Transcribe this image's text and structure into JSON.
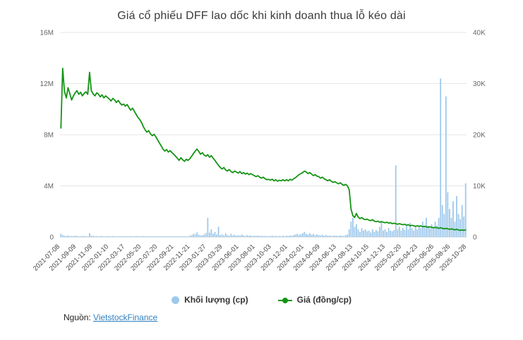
{
  "page": {
    "title": "Giá cổ phiếu DFF lao dốc khi kinh doanh thua lỗ kéo dài",
    "source_label": "Nguồn:",
    "source_link_text": "VietstockFinance"
  },
  "legend": {
    "volume_label": "Khối lượng (cp)",
    "price_label": "Giá (đồng/cp)"
  },
  "colors": {
    "volume_bar": "#9ec9ec",
    "price_line": "#149414",
    "grid": "#e6e6e6",
    "baseline": "#d5d5d5",
    "axis_text": "#666666",
    "tick_text": "#444444",
    "title_text": "#3a3a3a",
    "link": "#2f7fc1"
  },
  "chart_data": {
    "type": "line",
    "title": "Giá cổ phiếu DFF lao dốc khi kinh doanh thua lỗ kéo dài",
    "xlabel": "",
    "ylabel_left": "Khối lượng (cp)",
    "ylabel_right": "Giá (đồng/cp)",
    "left_axis": {
      "min": 0,
      "max": 16,
      "unit": "M",
      "ticks": [
        "0",
        "4M",
        "8M",
        "12M",
        "16M"
      ]
    },
    "right_axis": {
      "min": 0,
      "max": 40,
      "unit": "K",
      "ticks": [
        "0",
        "10K",
        "20K",
        "30K",
        "40K"
      ]
    },
    "grid": true,
    "legend_position": "bottom",
    "x_tick_labels": [
      "2021-07-08",
      "2021-09-09",
      "2021-11-09",
      "2022-01-10",
      "2022-03-17",
      "2022-05-20",
      "2022-07-20",
      "2022-09-21",
      "2022-11-21",
      "2023-01-27",
      "2023-03-29",
      "2023-06-01",
      "2023-08-01",
      "2023-10-03",
      "2023-12-01",
      "2024-02-01",
      "2024-04-09",
      "2024-06-13",
      "2024-08-13",
      "2024-10-15",
      "2024-12-13",
      "2025-02-20",
      "2025-04-23",
      "2025-06-26",
      "2025-08-26",
      "2025-10-28"
    ],
    "series": [
      {
        "name": "Khối lượng (cp)",
        "type": "bar",
        "axis": "left",
        "unit": "millions of shares",
        "values": [
          0.25,
          0.15,
          0.1,
          0.08,
          0.12,
          0.06,
          0.09,
          0.07,
          0.1,
          0.08,
          0.05,
          0.07,
          0.06,
          0.09,
          0.06,
          0.05,
          0.3,
          0.12,
          0.08,
          0.06,
          0.07,
          0.05,
          0.06,
          0.08,
          0.05,
          0.06,
          0.07,
          0.06,
          0.05,
          0.07,
          0.06,
          0.05,
          0.06,
          0.05,
          0.07,
          0.06,
          0.05,
          0.06,
          0.05,
          0.07,
          0.05,
          0.06,
          0.08,
          0.06,
          0.05,
          0.07,
          0.06,
          0.05,
          0.06,
          0.05,
          0.07,
          0.05,
          0.06,
          0.05,
          0.06,
          0.05,
          0.07,
          0.05,
          0.06,
          0.05,
          0.06,
          0.05,
          0.06,
          0.05,
          0.06,
          0.05,
          0.07,
          0.05,
          0.06,
          0.05,
          0.06,
          0.05,
          0.1,
          0.15,
          0.25,
          0.2,
          0.35,
          0.18,
          0.12,
          0.15,
          0.2,
          0.3,
          1.5,
          0.35,
          0.6,
          0.25,
          0.4,
          0.2,
          0.8,
          0.15,
          0.2,
          0.12,
          0.3,
          0.15,
          0.1,
          0.25,
          0.12,
          0.18,
          0.1,
          0.15,
          0.1,
          0.2,
          0.12,
          0.08,
          0.15,
          0.1,
          0.12,
          0.08,
          0.1,
          0.08,
          0.12,
          0.08,
          0.1,
          0.07,
          0.09,
          0.07,
          0.08,
          0.08,
          0.1,
          0.07,
          0.09,
          0.06,
          0.08,
          0.07,
          0.09,
          0.07,
          0.1,
          0.08,
          0.12,
          0.1,
          0.15,
          0.2,
          0.25,
          0.18,
          0.22,
          0.3,
          0.4,
          0.25,
          0.2,
          0.3,
          0.18,
          0.25,
          0.15,
          0.2,
          0.15,
          0.12,
          0.18,
          0.1,
          0.15,
          0.1,
          0.12,
          0.08,
          0.1,
          0.12,
          0.1,
          0.08,
          0.12,
          0.1,
          0.08,
          0.15,
          0.2,
          0.6,
          1.2,
          1.5,
          0.8,
          1.0,
          0.6,
          0.4,
          0.7,
          0.5,
          0.6,
          0.45,
          0.5,
          0.35,
          0.6,
          0.4,
          0.55,
          0.45,
          0.8,
          1.2,
          0.5,
          0.6,
          0.4,
          0.7,
          0.5,
          0.45,
          0.55,
          5.6,
          0.6,
          0.8,
          0.5,
          0.7,
          0.55,
          0.9,
          0.6,
          1.1,
          0.7,
          0.5,
          0.8,
          0.6,
          0.9,
          0.7,
          1.2,
          0.8,
          1.5,
          0.9,
          0.7,
          1.0,
          0.8,
          1.2,
          0.9,
          1.5,
          12.4,
          2.5,
          1.8,
          11.0,
          3.5,
          2.2,
          1.5,
          2.8,
          1.2,
          3.2,
          1.8,
          1.4,
          2.5,
          1.6,
          4.2
        ]
      },
      {
        "name": "Giá (đồng/cp)",
        "type": "line",
        "axis": "right",
        "unit": "thousands of dong",
        "values": [
          21.3,
          33.0,
          28.5,
          27.2,
          29.2,
          28.0,
          26.8,
          27.6,
          28.2,
          28.6,
          27.9,
          28.3,
          27.6,
          28.1,
          28.4,
          27.9,
          32.2,
          28.6,
          28.0,
          27.6,
          28.2,
          27.9,
          27.4,
          27.8,
          27.2,
          27.6,
          27.3,
          27.0,
          26.6,
          27.1,
          26.8,
          26.3,
          26.7,
          26.2,
          25.8,
          26.0,
          25.6,
          25.9,
          25.3,
          24.8,
          25.2,
          24.6,
          24.0,
          23.4,
          23.0,
          22.4,
          21.6,
          21.0,
          20.5,
          20.8,
          20.2,
          19.8,
          20.1,
          19.6,
          19.0,
          18.4,
          17.8,
          17.2,
          16.8,
          17.1,
          16.6,
          16.9,
          16.5,
          16.2,
          15.8,
          15.4,
          15.0,
          15.5,
          15.1,
          14.8,
          15.2,
          15.0,
          15.3,
          15.8,
          16.3,
          16.8,
          17.2,
          16.7,
          16.2,
          16.5,
          16.0,
          15.8,
          16.1,
          15.6,
          15.9,
          15.4,
          15.0,
          14.5,
          14.0,
          13.6,
          13.3,
          13.6,
          13.1,
          12.9,
          13.2,
          12.8,
          12.6,
          12.9,
          12.7,
          12.5,
          12.8,
          12.4,
          12.6,
          12.3,
          12.5,
          12.2,
          12.4,
          12.2,
          12.0,
          11.8,
          12.0,
          11.7,
          11.5,
          11.7,
          11.4,
          11.2,
          11.3,
          11.1,
          11.3,
          11.0,
          11.2,
          10.9,
          11.1,
          11.0,
          11.2,
          11.0,
          11.2,
          11.0,
          11.3,
          11.1,
          11.4,
          11.6,
          11.9,
          12.2,
          12.4,
          12.6,
          12.9,
          12.7,
          12.4,
          12.6,
          12.3,
          12.0,
          12.2,
          11.9,
          11.8,
          11.5,
          11.7,
          11.4,
          11.2,
          11.0,
          11.2,
          10.9,
          10.7,
          10.8,
          10.6,
          10.4,
          10.6,
          10.3,
          10.1,
          10.3,
          10.0,
          9.2,
          5.5,
          4.2,
          3.8,
          4.6,
          3.9,
          3.6,
          3.8,
          3.5,
          3.4,
          3.5,
          3.3,
          3.2,
          3.4,
          3.1,
          3.0,
          3.1,
          2.9,
          3.0,
          2.9,
          2.8,
          2.9,
          2.7,
          2.8,
          2.6,
          2.7,
          2.6,
          2.5,
          2.6,
          2.5,
          2.4,
          2.5,
          2.3,
          2.4,
          2.2,
          2.3,
          2.2,
          2.1,
          2.2,
          2.1,
          2.2,
          2.0,
          2.1,
          2.0,
          1.9,
          2.0,
          1.9,
          1.8,
          1.9,
          1.8,
          1.7,
          1.8,
          1.7,
          1.6,
          1.7,
          1.6,
          1.5,
          1.6,
          1.5,
          1.4,
          1.5,
          1.4,
          1.3,
          1.4,
          1.3,
          1.4
        ]
      }
    ]
  }
}
